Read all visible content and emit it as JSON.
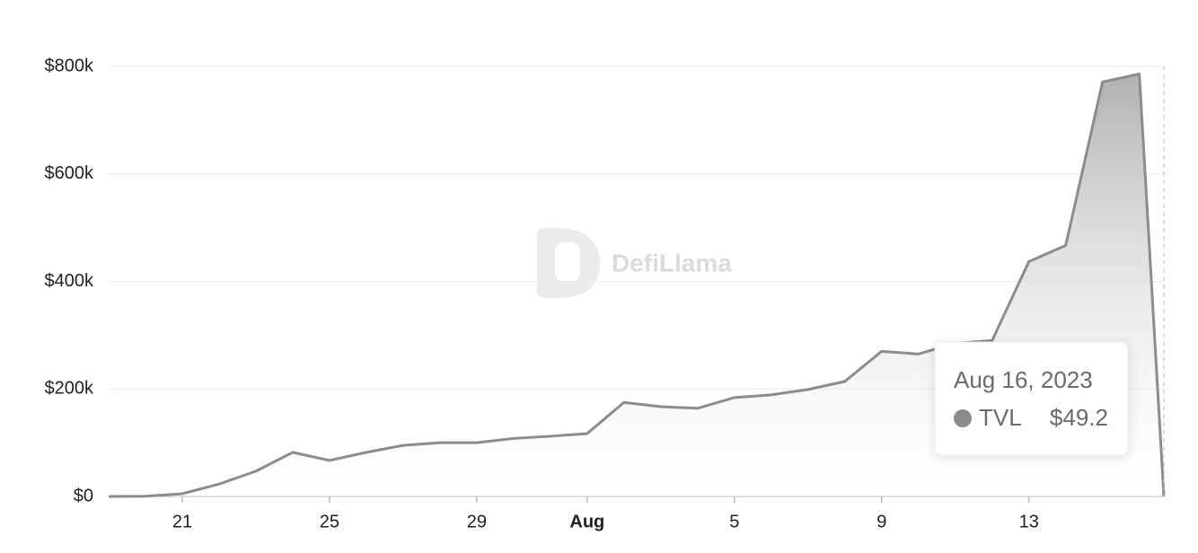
{
  "chart_data": {
    "type": "area",
    "watermark": "DefiLlama",
    "x": [
      "2023-07-19",
      "2023-07-20",
      "2023-07-21",
      "2023-07-22",
      "2023-07-23",
      "2023-07-24",
      "2023-07-25",
      "2023-07-26",
      "2023-07-27",
      "2023-07-28",
      "2023-07-29",
      "2023-07-30",
      "2023-07-31",
      "2023-08-01",
      "2023-08-02",
      "2023-08-03",
      "2023-08-04",
      "2023-08-05",
      "2023-08-06",
      "2023-08-07",
      "2023-08-08",
      "2023-08-09",
      "2023-08-10",
      "2023-08-11",
      "2023-08-12",
      "2023-08-13",
      "2023-08-14",
      "2023-08-15",
      "2023-08-16",
      "2023-08-16T16:00Z"
    ],
    "series": [
      {
        "name": "TVL",
        "color": "#8c8c8c",
        "values": [
          0,
          500,
          5000,
          23000,
          47000,
          82000,
          67000,
          82000,
          95000,
          100000,
          100000,
          108000,
          112000,
          117000,
          175000,
          167000,
          164000,
          184000,
          189000,
          199000,
          214000,
          270000,
          265000,
          285000,
          290000,
          437000,
          467000,
          771000,
          786000,
          49.2
        ]
      }
    ],
    "xlim": [
      "2023-07-19",
      "2023-08-16T16:00Z"
    ],
    "xticks": [
      {
        "value": "2023-07-21",
        "label": "21"
      },
      {
        "value": "2023-07-25",
        "label": "25"
      },
      {
        "value": "2023-07-29",
        "label": "29"
      },
      {
        "value": "2023-08-01",
        "label": "Aug"
      },
      {
        "value": "2023-08-05",
        "label": "5"
      },
      {
        "value": "2023-08-09",
        "label": "9"
      },
      {
        "value": "2023-08-13",
        "label": "13"
      }
    ],
    "ylim": [
      0,
      800000
    ],
    "yticks": [
      {
        "value": 0,
        "label": "$0"
      },
      {
        "value": 200000,
        "label": "$200k"
      },
      {
        "value": 400000,
        "label": "$400k"
      },
      {
        "value": 600000,
        "label": "$600k"
      },
      {
        "value": 800000,
        "label": "$800k"
      }
    ],
    "grid": true,
    "tooltip": {
      "date": "Aug 16, 2023",
      "label": "$49.2"
    }
  }
}
